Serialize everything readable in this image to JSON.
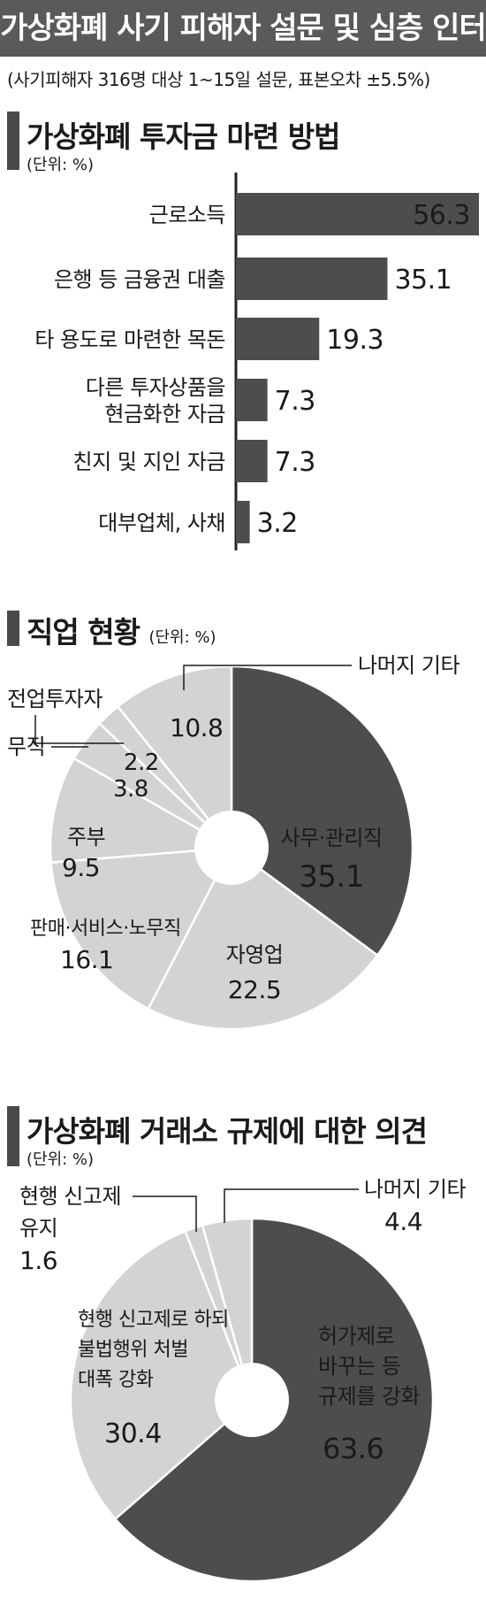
{
  "header": {
    "title": "가상화폐 사기 피해자 설문 및 심층 인터뷰 결과",
    "note": "(사기피해자 316명 대상 1~15일 설문, 표본오차 ±5.5%)"
  },
  "sections": {
    "funding": {
      "title": "가상화폐 투자금 마련 방법",
      "unit": "(단위: %)"
    },
    "job": {
      "title": "직업 현황",
      "unit": "(단위: %)"
    },
    "regulation": {
      "title": "가상화폐 거래소 규제에 대한 의견",
      "unit": "(단위: %)"
    }
  },
  "colors": {
    "dark": "#4d4d4d",
    "light": "#d3d3d3",
    "banner": "#5a5a5a"
  },
  "chart_data": [
    {
      "type": "bar",
      "orientation": "horizontal",
      "title": "가상화폐 투자금 마련 방법",
      "unit": "(단위: %)",
      "categories": [
        [
          "근로소득"
        ],
        [
          "은행 등 금융권 대출"
        ],
        [
          "타 용도로 마련한 목돈"
        ],
        [
          "다른 투자상품을",
          "현금화한 자금"
        ],
        [
          "친지 및 지인 자금"
        ],
        [
          "대부업체, 사채"
        ]
      ],
      "values": [
        56.3,
        35.1,
        19.3,
        7.3,
        7.3,
        3.2
      ],
      "value_labels": [
        "56.3",
        "35.1",
        "19.3",
        "7.3",
        "7.3",
        "3.2"
      ]
    },
    {
      "type": "pie",
      "style": "donut",
      "title": "직업 현황",
      "unit": "(단위: %)",
      "slices": [
        {
          "label": [
            "사무·관리직"
          ],
          "value": 35.1,
          "display": "35.1",
          "shade": "dark"
        },
        {
          "label": [
            "자영업"
          ],
          "value": 22.5,
          "display": "22.5",
          "shade": "light"
        },
        {
          "label": [
            "판매·서비스·노무직"
          ],
          "value": 16.1,
          "display": "16.1",
          "shade": "light"
        },
        {
          "label": [
            "주부"
          ],
          "value": 9.5,
          "display": "9.5",
          "shade": "light"
        },
        {
          "label": [
            "무직"
          ],
          "value": 3.8,
          "display": "3.8",
          "shade": "light"
        },
        {
          "label": [
            "전업투자자"
          ],
          "value": 2.2,
          "display": "2.2",
          "shade": "light"
        },
        {
          "label": [
            "나머지 기타"
          ],
          "value": 10.8,
          "display": "10.8",
          "shade": "light"
        }
      ]
    },
    {
      "type": "pie",
      "style": "donut",
      "title": "가상화폐 거래소 규제에 대한 의견",
      "unit": "(단위: %)",
      "slices": [
        {
          "label": [
            "허가제로",
            "바꾸는 등",
            "규제를 강화"
          ],
          "value": 63.6,
          "display": "63.6",
          "shade": "dark"
        },
        {
          "label": [
            "현행 신고제로 하되",
            "불법행위 처벌",
            "대폭 강화"
          ],
          "value": 30.4,
          "display": "30.4",
          "shade": "light"
        },
        {
          "label": [
            "현행 신고제",
            "유지"
          ],
          "value": 1.6,
          "display": "1.6",
          "shade": "light"
        },
        {
          "label": [
            "나머지 기타"
          ],
          "value": 4.4,
          "display": "4.4",
          "shade": "light"
        }
      ]
    }
  ]
}
